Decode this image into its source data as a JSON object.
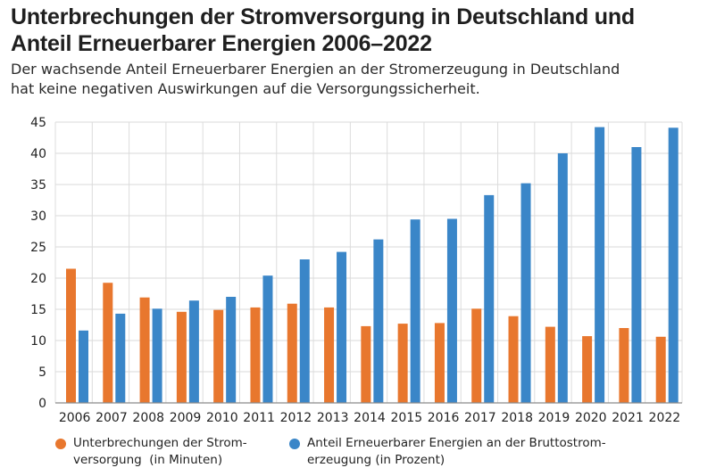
{
  "chart_data": {
    "type": "bar",
    "title_line1": "Unterbrechungen der Stromversorgung in Deutschland und",
    "title_line2": "Anteil Erneuerbarer Energien 2006–2022",
    "subtitle_line1": "Der wachsende Anteil Erneuerbarer Energien an der Stromerzeugung in Deutschland",
    "subtitle_line2": "hat keine negativen Auswirkungen auf die Versorgungssicherheit.",
    "categories": [
      "2006",
      "2007",
      "2008",
      "2009",
      "2010",
      "2011",
      "2012",
      "2013",
      "2014",
      "2015",
      "2016",
      "2017",
      "2018",
      "2019",
      "2020",
      "2021",
      "2022"
    ],
    "series": [
      {
        "name": "Unterbrechungen der Stromversorgung (in Minuten)",
        "legend_line1": "Unterbrechungen der Strom-",
        "legend_line2": "versorgung  (in Minuten)",
        "color": "#e8772e",
        "values": [
          21.5,
          19.25,
          16.9,
          14.6,
          14.9,
          15.3,
          15.9,
          15.3,
          12.3,
          12.7,
          12.8,
          15.1,
          13.9,
          12.2,
          10.7,
          12.0,
          10.6
        ]
      },
      {
        "name": "Anteil Erneuerbarer Energien an der Bruttostromerzeugung (in Prozent)",
        "legend_line1": "Anteil Erneuerbarer Energien an der Bruttostrom-",
        "legend_line2": "erzeugung (in Prozent)",
        "color": "#3a86c8",
        "values": [
          11.6,
          14.3,
          15.1,
          16.4,
          17.0,
          20.4,
          23.0,
          24.2,
          26.2,
          29.4,
          29.5,
          33.3,
          35.2,
          40.0,
          44.2,
          41.0,
          44.1
        ]
      }
    ],
    "yticks": [
      0,
      5,
      10,
      15,
      20,
      25,
      30,
      35,
      40,
      45
    ],
    "ylim": [
      0,
      45
    ],
    "xlabel": "",
    "ylabel": "",
    "grid": true,
    "legend_position": "bottom"
  }
}
